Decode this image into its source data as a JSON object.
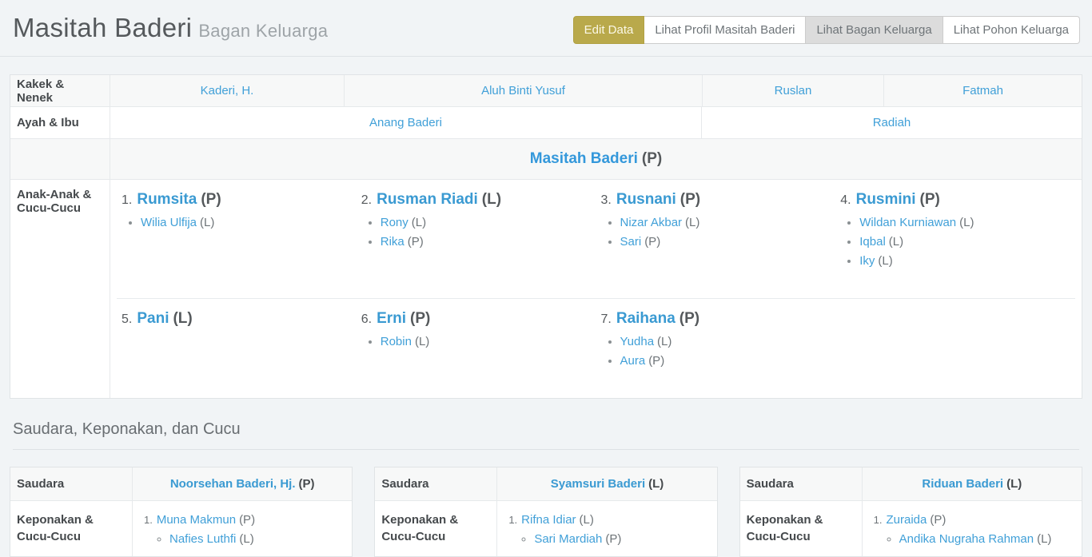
{
  "colors": {
    "page_background": "#f1f4f6",
    "accent_olive": "#b9a94b",
    "link_blue": "#41a0d8",
    "bold_link_blue": "#3498db",
    "active_button_gray": "#dcdcdc",
    "stripe_gray": "#f7f8f8"
  },
  "header": {
    "title": "Masitah Baderi",
    "subtitle": "Bagan Keluarga",
    "buttons": {
      "edit": "Edit Data",
      "profile": "Lihat Profil Masitah Baderi",
      "chart": "Lihat Bagan Keluarga",
      "tree": "Lihat Pohon Keluarga"
    }
  },
  "table": {
    "row_grandparents": {
      "label": "Kakek & Nenek",
      "cells": [
        "Kaderi, H.",
        "Aluh Binti Yusuf",
        "Ruslan",
        "Fatmah"
      ]
    },
    "row_parents": {
      "label": "Ayah & Ibu",
      "cells": [
        "Anang Baderi",
        "Radiah"
      ]
    },
    "row_self": {
      "name": "Masitah Baderi",
      "gender": "(P)"
    },
    "row_children": {
      "label": "Anak-Anak & Cucu-Cucu",
      "items": [
        {
          "num": "1.",
          "name": "Rumsita",
          "gender": "(P)",
          "subs": [
            {
              "name": "Wilia Ulfija",
              "gender": "(L)"
            }
          ]
        },
        {
          "num": "2.",
          "name": "Rusman Riadi",
          "gender": "(L)",
          "subs": [
            {
              "name": "Rony",
              "gender": "(L)"
            },
            {
              "name": "Rika",
              "gender": "(P)"
            }
          ]
        },
        {
          "num": "3.",
          "name": "Rusnani",
          "gender": "(P)",
          "subs": [
            {
              "name": "Nizar Akbar",
              "gender": "(L)"
            },
            {
              "name": "Sari",
              "gender": "(P)"
            }
          ]
        },
        {
          "num": "4.",
          "name": "Rusmini",
          "gender": "(P)",
          "subs": [
            {
              "name": "Wildan Kurniawan",
              "gender": "(L)"
            },
            {
              "name": "Iqbal",
              "gender": "(L)"
            },
            {
              "name": "Iky",
              "gender": "(L)"
            }
          ]
        },
        {
          "num": "5.",
          "name": "Pani",
          "gender": "(L)",
          "subs": []
        },
        {
          "num": "6.",
          "name": "Erni",
          "gender": "(P)",
          "subs": [
            {
              "name": "Robin",
              "gender": "(L)"
            }
          ]
        },
        {
          "num": "7.",
          "name": "Raihana",
          "gender": "(P)",
          "subs": [
            {
              "name": "Yudha",
              "gender": "(L)"
            },
            {
              "name": "Aura",
              "gender": "(P)"
            }
          ]
        }
      ]
    }
  },
  "siblings": {
    "heading": "Saudara, Keponakan, dan Cucu",
    "sibling_label": "Saudara",
    "nephews_label": "Keponakan & Cucu-Cucu",
    "cards": [
      {
        "name": "Noorsehan Baderi, Hj.",
        "gender": "(P)",
        "items": [
          {
            "num": "1.",
            "name": "Muna Makmun",
            "gender": "(P)",
            "subs": [
              {
                "name": "Nafies Luthfi",
                "gender": "(L)"
              }
            ]
          }
        ]
      },
      {
        "name": "Syamsuri Baderi",
        "gender": "(L)",
        "items": [
          {
            "num": "1.",
            "name": "Rifna Idiar",
            "gender": "(L)",
            "subs": [
              {
                "name": "Sari Mardiah",
                "gender": "(P)"
              }
            ]
          }
        ]
      },
      {
        "name": "Riduan Baderi",
        "gender": "(L)",
        "items": [
          {
            "num": "1.",
            "name": "Zuraida",
            "gender": "(P)",
            "subs": [
              {
                "name": "Andika Nugraha Rahman",
                "gender": "(L)"
              }
            ]
          }
        ]
      }
    ]
  }
}
